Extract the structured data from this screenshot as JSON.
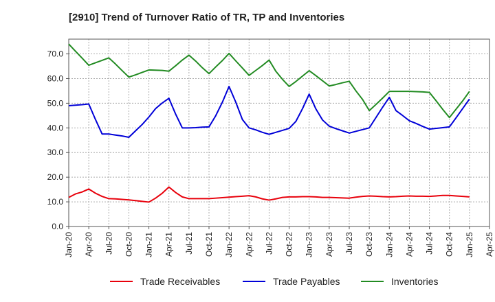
{
  "chart_data": {
    "type": "line",
    "title": "[2910]  Trend of Turnover Ratio of TR, TP and Inventories",
    "xlabel": "",
    "ylabel": "",
    "ylim": [
      0,
      76
    ],
    "grid": true,
    "legend_position": "bottom",
    "y_ticks": [
      "0.0",
      "10.0",
      "20.0",
      "30.0",
      "40.0",
      "50.0",
      "60.0",
      "70.0"
    ],
    "x_tick_labels": [
      "Jan-20",
      "Apr-20",
      "Jul-20",
      "Oct-20",
      "Jan-21",
      "Apr-21",
      "Jul-21",
      "Oct-21",
      "Jan-22",
      "Apr-22",
      "Jul-22",
      "Oct-22",
      "Jan-23",
      "Apr-23",
      "Jul-23",
      "Oct-23",
      "Jan-24",
      "Apr-24",
      "Jul-24",
      "Oct-24",
      "Jan-25",
      "Apr-25"
    ],
    "x": [
      "Jan-20",
      "Feb-20",
      "Mar-20",
      "Apr-20",
      "May-20",
      "Jun-20",
      "Jul-20",
      "Aug-20",
      "Sep-20",
      "Oct-20",
      "Nov-20",
      "Dec-20",
      "Jan-21",
      "Feb-21",
      "Mar-21",
      "Apr-21",
      "May-21",
      "Jun-21",
      "Jul-21",
      "Aug-21",
      "Sep-21",
      "Oct-21",
      "Nov-21",
      "Dec-21",
      "Jan-22",
      "Feb-22",
      "Mar-22",
      "Apr-22",
      "May-22",
      "Jun-22",
      "Jul-22",
      "Aug-22",
      "Sep-22",
      "Oct-22",
      "Nov-22",
      "Dec-22",
      "Jan-23",
      "Feb-23",
      "Mar-23",
      "Apr-23",
      "May-23",
      "Jun-23",
      "Jul-23",
      "Aug-23",
      "Sep-23",
      "Oct-23",
      "Nov-23",
      "Dec-23",
      "Jan-24",
      "Feb-24",
      "Mar-24",
      "Apr-24",
      "May-24",
      "Jun-24",
      "Jul-24",
      "Aug-24",
      "Sep-24",
      "Oct-24",
      "Nov-24",
      "Dec-24",
      "Jan-25"
    ],
    "series": [
      {
        "name": "Trade Receivables",
        "color": "#e8000b",
        "values": [
          11.8,
          13.2,
          14.0,
          15.2,
          13.5,
          12.2,
          11.3,
          11.2,
          11.0,
          10.8,
          10.5,
          10.2,
          9.9,
          11.5,
          13.5,
          16.0,
          13.8,
          12.0,
          11.3,
          11.3,
          11.3,
          11.3,
          11.5,
          11.7,
          11.9,
          12.1,
          12.3,
          12.5,
          12.0,
          11.2,
          10.7,
          11.2,
          11.8,
          12.0,
          12.0,
          12.1,
          12.1,
          12.0,
          11.8,
          11.8,
          11.7,
          11.6,
          11.5,
          11.9,
          12.2,
          12.4,
          12.3,
          12.1,
          12.0,
          12.1,
          12.3,
          12.4,
          12.3,
          12.3,
          12.2,
          12.4,
          12.6,
          12.6,
          12.4,
          12.2,
          12.0
        ]
      },
      {
        "name": "Trade Payables",
        "color": "#0000d8",
        "values": [
          49.0,
          49.2,
          49.4,
          49.7,
          43.4,
          37.5,
          37.5,
          37.1,
          36.7,
          36.2,
          38.8,
          41.4,
          44.4,
          47.8,
          50.1,
          52.0,
          45.6,
          40.0,
          40.0,
          40.1,
          40.3,
          40.4,
          44.9,
          50.4,
          56.8,
          50.5,
          43.4,
          40.0,
          39.2,
          38.2,
          37.4,
          38.2,
          39.0,
          39.8,
          42.6,
          47.8,
          53.7,
          47.7,
          43.2,
          40.7,
          39.7,
          38.8,
          37.9,
          38.6,
          39.3,
          40.0,
          44.2,
          48.4,
          52.4,
          47.0,
          45.0,
          42.9,
          41.8,
          40.6,
          39.5,
          39.8,
          40.1,
          40.4,
          44.1,
          47.9,
          51.7
        ]
      },
      {
        "name": "Inventories",
        "color": "#228b22",
        "values": [
          74.0,
          71.1,
          68.3,
          65.4,
          66.4,
          67.4,
          68.4,
          65.9,
          63.2,
          60.6,
          61.5,
          62.5,
          63.5,
          63.4,
          63.3,
          63.0,
          65.2,
          67.5,
          69.5,
          67.1,
          64.4,
          62.0,
          64.7,
          67.3,
          70.2,
          67.2,
          64.3,
          61.3,
          63.3,
          65.3,
          67.5,
          63.0,
          59.7,
          56.8,
          58.8,
          61.0,
          63.2,
          61.2,
          59.1,
          57.0,
          57.6,
          58.3,
          58.9,
          55.0,
          51.5,
          47.0,
          49.5,
          52.1,
          54.8,
          54.8,
          54.8,
          54.8,
          54.7,
          54.6,
          54.4,
          51.0,
          47.5,
          44.2,
          47.6,
          51.0,
          54.8
        ]
      }
    ]
  }
}
